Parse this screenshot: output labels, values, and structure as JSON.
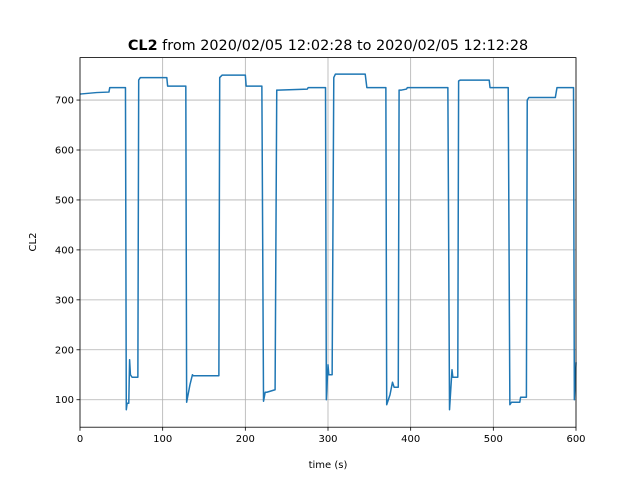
{
  "chart_data": {
    "type": "line",
    "title_bold": "CL2",
    "title": "from 2020/02/05 12:02:28 to 2020/02/05 12:12:28",
    "x_label": "time (s)",
    "y_label": "CL2",
    "xlim": [
      0,
      600
    ],
    "ylim": [
      45,
      785
    ],
    "xticks": [
      0,
      100,
      200,
      300,
      400,
      500,
      600
    ],
    "yticks": [
      100,
      200,
      300,
      400,
      500,
      600,
      700
    ],
    "grid": true,
    "series": [
      {
        "name": "CL2",
        "color": "#1f77b4",
        "x": [
          0,
          20,
          35,
          36,
          55,
          56,
          57,
          59,
          60,
          61,
          63,
          70,
          71,
          73,
          105,
          106,
          128,
          129,
          133,
          136,
          137,
          168,
          169,
          172,
          200,
          201,
          220,
          222,
          224,
          226,
          236,
          238,
          240,
          275,
          276,
          297,
          298,
          300,
          301,
          303,
          305,
          307,
          309,
          345,
          347,
          370,
          371,
          375,
          378,
          380,
          385,
          386,
          389,
          395,
          396,
          445,
          447,
          450,
          451,
          452,
          457,
          458,
          460,
          495,
          496,
          518,
          520,
          522,
          532,
          533,
          540,
          541,
          543,
          545,
          575,
          577,
          597,
          598,
          600
        ],
        "values": [
          712,
          715,
          716,
          725,
          725,
          80,
          93,
          93,
          180,
          150,
          145,
          145,
          740,
          745,
          745,
          728,
          728,
          95,
          130,
          150,
          148,
          148,
          745,
          750,
          750,
          728,
          728,
          97,
          115,
          115,
          120,
          720,
          720,
          722,
          725,
          725,
          100,
          170,
          150,
          150,
          150,
          745,
          752,
          752,
          725,
          725,
          90,
          110,
          135,
          125,
          125,
          720,
          720,
          722,
          725,
          725,
          80,
          160,
          145,
          145,
          145,
          738,
          740,
          740,
          725,
          725,
          90,
          95,
          95,
          105,
          105,
          700,
          705,
          705,
          705,
          725,
          725,
          100,
          175
        ]
      }
    ]
  }
}
